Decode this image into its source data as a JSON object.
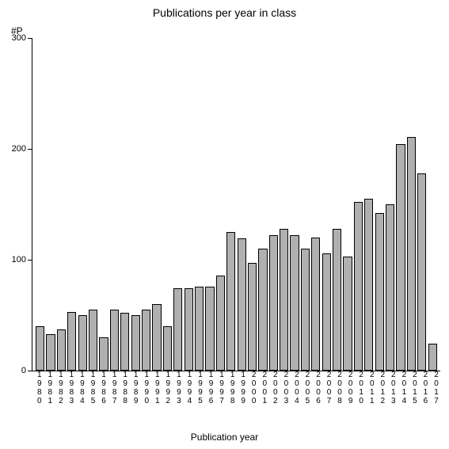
{
  "chart": {
    "type": "bar",
    "title": "Publications per year in class",
    "title_fontsize": 14,
    "xlabel": "Publication year",
    "ylabel": "#P",
    "label_fontsize": 12,
    "ylim": [
      0,
      300
    ],
    "yticks": [
      0,
      100,
      200,
      300
    ],
    "background_color": "#ffffff",
    "bar_color": "#b0b0b0",
    "bar_border_color": "#000000",
    "axis_color": "#000000",
    "tick_fontsize": 11,
    "xtick_fontsize": 10,
    "categories": [
      "1980",
      "1981",
      "1982",
      "1983",
      "1984",
      "1985",
      "1986",
      "1987",
      "1988",
      "1989",
      "1990",
      "1991",
      "1992",
      "1993",
      "1994",
      "1995",
      "1996",
      "1997",
      "1998",
      "1999",
      "2000",
      "2001",
      "2002",
      "2003",
      "2004",
      "2005",
      "2006",
      "2007",
      "2008",
      "2009",
      "2010",
      "2011",
      "2012",
      "2013",
      "2014",
      "2015",
      "2016",
      "2017"
    ],
    "values": [
      40,
      33,
      37,
      53,
      50,
      55,
      30,
      55,
      52,
      50,
      55,
      60,
      40,
      74,
      74,
      76,
      76,
      86,
      125,
      119,
      97,
      110,
      122,
      128,
      122,
      110,
      120,
      106,
      128,
      103,
      152,
      155,
      142,
      150,
      204,
      211,
      178,
      24
    ]
  }
}
